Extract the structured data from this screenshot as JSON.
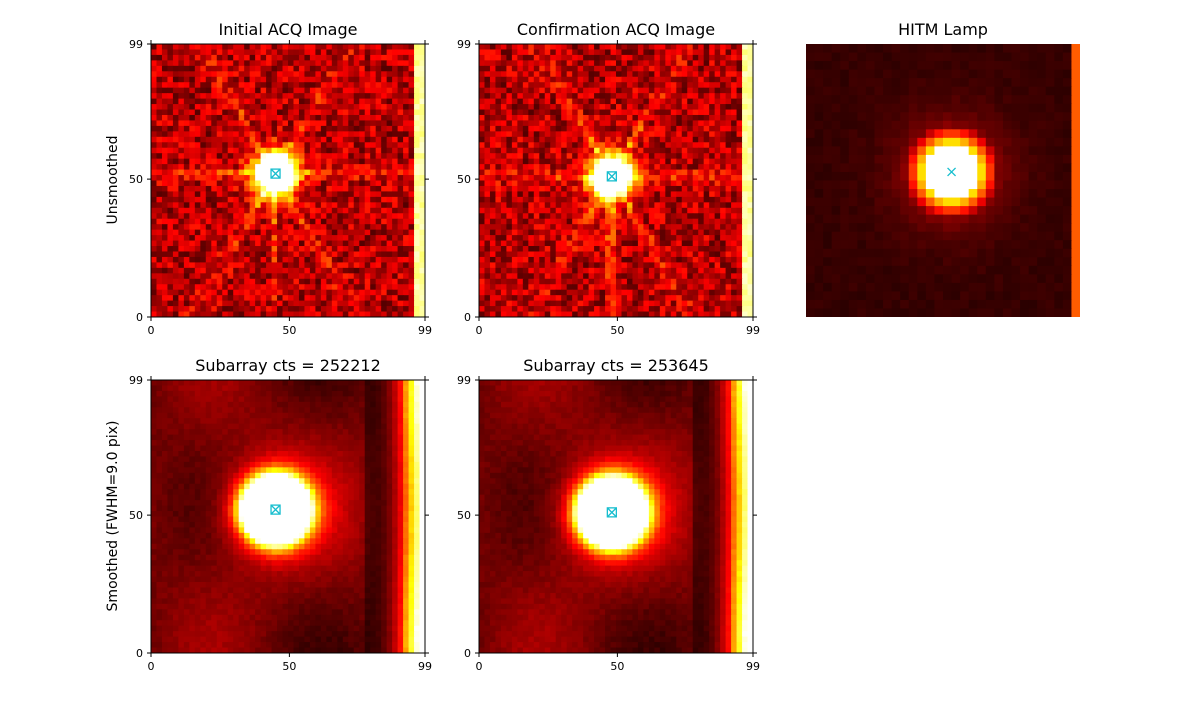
{
  "figure": {
    "row_labels": {
      "top": "Unsmoothed",
      "bottom": "Smoothed (FWHM=9.0 pix)"
    }
  },
  "chart_data": [
    {
      "type": "heatmap",
      "id": "initial_unsmoothed",
      "title": "Initial ACQ Image",
      "colormap": "hot",
      "xlim": [
        0,
        99
      ],
      "ylim": [
        0,
        99
      ],
      "x_ticks": [
        "0",
        "50",
        "99"
      ],
      "y_ticks": [
        "0",
        "50",
        "99"
      ],
      "source": {
        "x": 45,
        "y": 52,
        "core_radius": 6,
        "spikes": true
      },
      "edge_strip": {
        "x_from": 96,
        "level": 0.85
      },
      "markers": [
        {
          "x": 45,
          "y": 52,
          "symbols": [
            "square",
            "x"
          ],
          "color": "#17becf"
        }
      ]
    },
    {
      "type": "heatmap",
      "id": "confirmation_unsmoothed",
      "title": "Confirmation ACQ Image",
      "colormap": "hot",
      "xlim": [
        0,
        99
      ],
      "ylim": [
        0,
        99
      ],
      "x_ticks": [
        "0",
        "50",
        "99"
      ],
      "y_ticks": [
        "0",
        "50",
        "99"
      ],
      "source": {
        "x": 48,
        "y": 51,
        "core_radius": 6,
        "spikes": true
      },
      "edge_strip": {
        "x_from": 96,
        "level": 0.85
      },
      "markers": [
        {
          "x": 48,
          "y": 51,
          "symbols": [
            "square",
            "x"
          ],
          "color": "#17becf"
        }
      ]
    },
    {
      "type": "heatmap",
      "id": "hitm_lamp",
      "title": "HITM Lamp",
      "colormap": "hot",
      "xlim": [
        0,
        32
      ],
      "ylim": [
        0,
        32
      ],
      "axes_visible": false,
      "source": {
        "x": 17,
        "y": 17,
        "core_radius": 3.5
      },
      "edge_strip": {
        "x_from": 31,
        "level": 0.5
      },
      "markers": [
        {
          "x": 17,
          "y": 17,
          "symbols": [
            "x"
          ],
          "color": "#17becf"
        }
      ]
    },
    {
      "type": "heatmap",
      "id": "initial_smoothed",
      "title": "Subarray cts =    252212",
      "colormap": "hot",
      "xlim": [
        0,
        99
      ],
      "ylim": [
        0,
        99
      ],
      "x_ticks": [
        "0",
        "50",
        "99"
      ],
      "y_ticks": [
        "0",
        "50",
        "99"
      ],
      "source": {
        "x": 45,
        "y": 52,
        "core_radius": 12
      },
      "edge_gradient": {
        "x_from": 80
      },
      "markers": [
        {
          "x": 45,
          "y": 52,
          "symbols": [
            "square",
            "x"
          ],
          "color": "#17becf"
        }
      ]
    },
    {
      "type": "heatmap",
      "id": "confirmation_smoothed",
      "title": "Subarray cts =    253645",
      "colormap": "hot",
      "xlim": [
        0,
        99
      ],
      "ylim": [
        0,
        99
      ],
      "x_ticks": [
        "0",
        "50",
        "99"
      ],
      "y_ticks": [
        "0",
        "50",
        "99"
      ],
      "source": {
        "x": 48,
        "y": 51,
        "core_radius": 12
      },
      "edge_gradient": {
        "x_from": 80
      },
      "markers": [
        {
          "x": 48,
          "y": 51,
          "symbols": [
            "square",
            "x"
          ],
          "color": "#17becf"
        }
      ]
    }
  ]
}
